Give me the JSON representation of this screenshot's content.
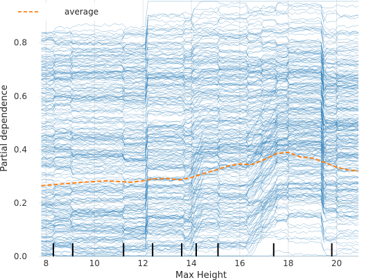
{
  "chart_data": {
    "type": "line",
    "title": "",
    "xlabel": "Max Height",
    "ylabel": "Partial dependence",
    "xlim": [
      7.7,
      20.9
    ],
    "ylim": [
      0.0,
      0.96
    ],
    "x_ticks": [
      "8",
      "10",
      "12",
      "14",
      "16",
      "18",
      "20"
    ],
    "y_ticks": [
      "0.0",
      "0.2",
      "0.4",
      "0.6",
      "0.8"
    ],
    "grid": true,
    "legend": {
      "position": "top-left",
      "entries": [
        "average"
      ]
    },
    "colors": {
      "ice_lines": "#1f77b4",
      "average": "#ff7f0e",
      "grid": "#e6e6e6",
      "rug": "#000000"
    },
    "series": [
      {
        "name": "average",
        "style": "dashed",
        "x": [
          7.8,
          8.5,
          9.5,
          10.5,
          11.5,
          12.0,
          12.4,
          13.0,
          13.5,
          14.0,
          14.5,
          15.0,
          15.5,
          16.0,
          16.5,
          17.0,
          17.5,
          18.0,
          18.5,
          19.0,
          19.5,
          20.0,
          20.5,
          20.9
        ],
        "values": [
          0.265,
          0.27,
          0.278,
          0.283,
          0.278,
          0.283,
          0.29,
          0.292,
          0.287,
          0.295,
          0.31,
          0.323,
          0.338,
          0.346,
          0.344,
          0.362,
          0.385,
          0.39,
          0.372,
          0.368,
          0.352,
          0.334,
          0.323,
          0.32
        ]
      }
    ],
    "ice": {
      "description_free_count": 260,
      "jump_x": [
        8.3,
        9.1,
        11.2,
        12.2,
        13.65,
        14.1,
        15.1,
        16.3,
        16.9,
        17.5,
        18.0,
        19.5,
        20.0
      ],
      "mean_jump_x": [
        12.15,
        13.9,
        14.2,
        16.8,
        17.3,
        19.45,
        20.0
      ]
    },
    "rug_x": [
      8.3,
      9.1,
      11.2,
      12.4,
      13.6,
      14.2,
      15.1,
      17.4,
      19.8
    ]
  }
}
